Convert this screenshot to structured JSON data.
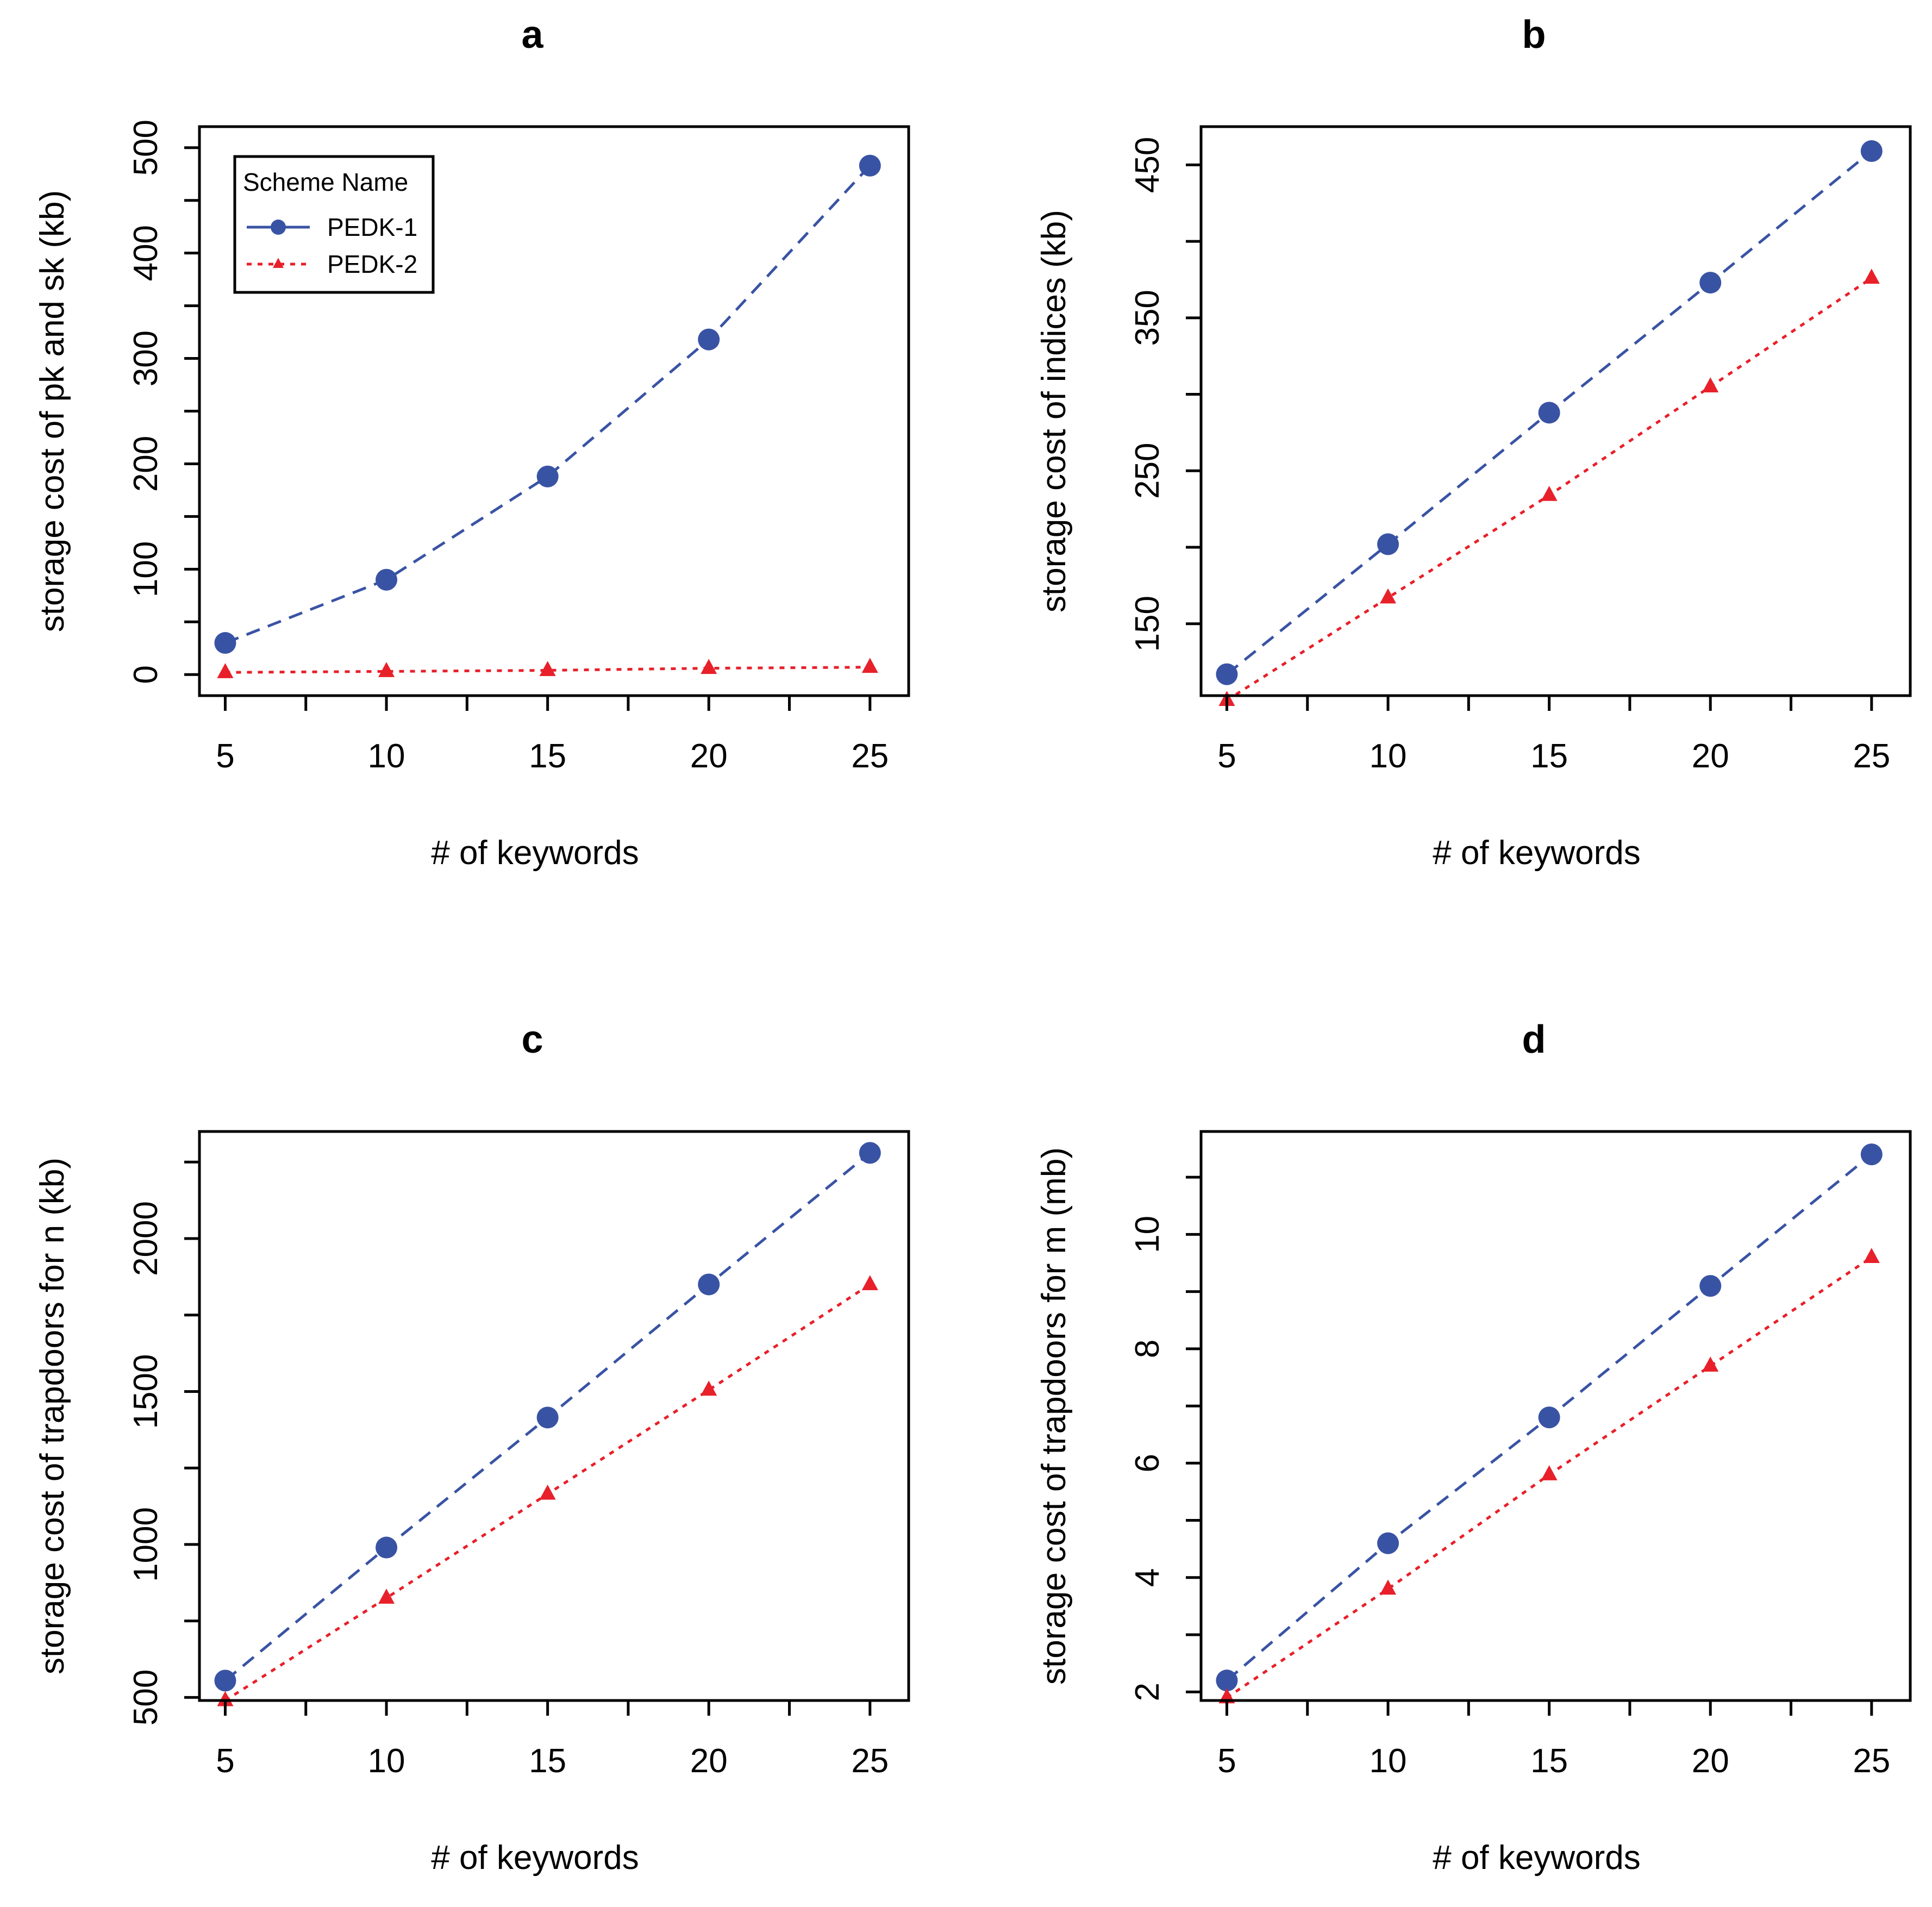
{
  "colors": {
    "pedk1": "#3953A4",
    "pedk2": "#E8202A",
    "axis": "#000000",
    "background": "#FFFFFF"
  },
  "legend": {
    "title": "Scheme Name",
    "entries": [
      {
        "label": "PEDK-1",
        "marker": "circle",
        "line": "dashed"
      },
      {
        "label": "PEDK-2",
        "marker": "triangle",
        "line": "dotted"
      }
    ],
    "placement": "top-left of panel a"
  },
  "chart_data": [
    {
      "type": "line",
      "title": "a",
      "xlabel": "# of keywords",
      "ylabel": "storage cost of pk and sk (kb)",
      "x": [
        5,
        10,
        15,
        20,
        25
      ],
      "xticks": [
        "5",
        "10",
        "15",
        "20",
        "25"
      ],
      "yticks": [
        "0",
        "100",
        "200",
        "300",
        "400",
        "500"
      ],
      "xlim": [
        4.2,
        26.2
      ],
      "ylim": [
        -20,
        520
      ],
      "series": [
        {
          "name": "PEDK-1",
          "values": [
            30,
            90,
            188,
            318,
            483
          ]
        },
        {
          "name": "PEDK-2",
          "values": [
            2,
            3,
            4,
            6,
            7
          ]
        }
      ],
      "legend": true
    },
    {
      "type": "line",
      "title": "b",
      "xlabel": "# of keywords",
      "ylabel": "storage cost of indices (kb)",
      "x": [
        5,
        10,
        15,
        20,
        25
      ],
      "xticks": [
        "5",
        "10",
        "15",
        "20",
        "25"
      ],
      "yticks": [
        "150",
        "250",
        "350",
        "450"
      ],
      "xlim": [
        4.2,
        26.2
      ],
      "ylim": [
        103,
        475
      ],
      "series": [
        {
          "name": "PEDK-1",
          "values": [
            117,
            202,
            288,
            373,
            459
          ]
        },
        {
          "name": "PEDK-2",
          "values": [
            100,
            167,
            234,
            305,
            376
          ]
        }
      ],
      "legend": false
    },
    {
      "type": "line",
      "title": "c",
      "xlabel": "# of keywords",
      "ylabel": "storage cost of trapdoors for n (kb)",
      "x": [
        5,
        10,
        15,
        20,
        25
      ],
      "xticks": [
        "5",
        "10",
        "15",
        "20",
        "25"
      ],
      "yticks": [
        "500",
        "1000",
        "1500",
        "2000"
      ],
      "xlim": [
        4.2,
        26.2
      ],
      "ylim": [
        490,
        2350
      ],
      "series": [
        {
          "name": "PEDK-1",
          "values": [
            555,
            990,
            1415,
            1850,
            2280
          ]
        },
        {
          "name": "PEDK-2",
          "values": [
            490,
            825,
            1165,
            1505,
            1850
          ]
        }
      ],
      "legend": false
    },
    {
      "type": "line",
      "title": "d",
      "xlabel": "# of keywords",
      "ylabel": "storage cost of trapdoors for m (mb)",
      "x": [
        5,
        10,
        15,
        20,
        25
      ],
      "xticks": [
        "5",
        "10",
        "15",
        "20",
        "25"
      ],
      "yticks": [
        "2",
        "4",
        "6",
        "8",
        "10"
      ],
      "xlim": [
        4.2,
        26.2
      ],
      "ylim": [
        1.85,
        11.8
      ],
      "series": [
        {
          "name": "PEDK-1",
          "values": [
            2.2,
            4.6,
            6.8,
            9.1,
            11.4
          ]
        },
        {
          "name": "PEDK-2",
          "values": [
            1.9,
            3.8,
            5.8,
            7.7,
            9.6
          ]
        }
      ],
      "legend": false
    }
  ]
}
